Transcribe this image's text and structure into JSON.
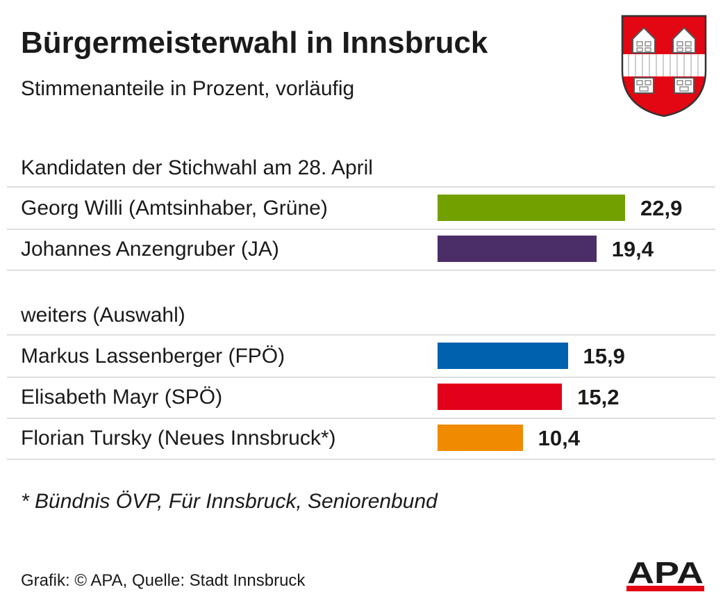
{
  "header": {
    "title": "Bürgermeisterwahl in Innsbruck",
    "subtitle": "Stimmenanteile in Prozent, vorläufig",
    "crest_icon": "innsbruck-coat-of-arms"
  },
  "sections": {
    "runoff_heading": "Kandidaten der Stichwahl am 28. April",
    "others_heading": "weiters (Auswahl)"
  },
  "chart_data": {
    "type": "bar",
    "orientation": "horizontal",
    "title": "Bürgermeisterwahl in Innsbruck",
    "subtitle": "Stimmenanteile in Prozent, vorläufig",
    "categories": [
      "Georg Willi (Amtsinhaber, Grüne)",
      "Johannes Anzengruber (JA)",
      "Markus Lassenberger (FPÖ)",
      "Elisabeth Mayr (SPÖ)",
      "Florian Tursky (Neues Innsbruck*)"
    ],
    "values": [
      22.9,
      19.4,
      15.9,
      15.2,
      10.4
    ],
    "value_labels": [
      "22,9",
      "19,4",
      "15,9",
      "15,2",
      "10,4"
    ],
    "colors": [
      "#72a000",
      "#4b2d68",
      "#0061ae",
      "#e2001a",
      "#f08a00"
    ],
    "xlim": [
      0,
      30
    ],
    "grid": false,
    "legend": "none"
  },
  "footnote": "* Bündnis ÖVP, Für Innsbruck, Seniorenbund",
  "footer": {
    "source": "Grafik: © APA, Quelle: Stadt Innsbruck",
    "logo_text": "APA"
  }
}
